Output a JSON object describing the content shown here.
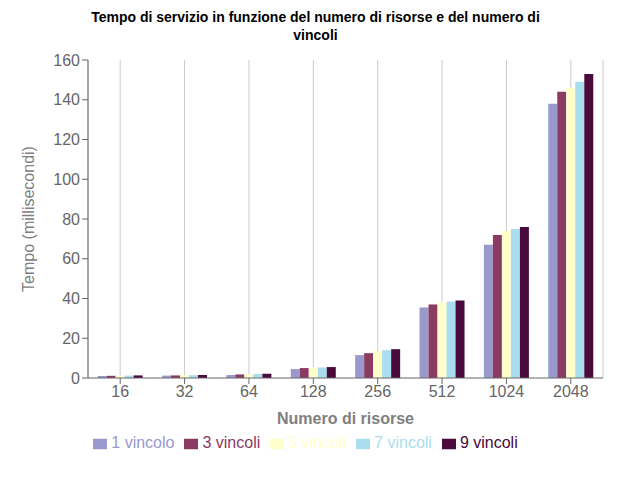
{
  "chart_data": {
    "type": "bar",
    "title": "Tempo di servizio in funzione del numero di risorse e del numero di\nvincoli",
    "xlabel": "Numero di risorse",
    "ylabel": "Tempo (millisecondi)",
    "categories": [
      "16",
      "32",
      "64",
      "128",
      "256",
      "512",
      "1024",
      "2048"
    ],
    "series": [
      {
        "name": "1 vincolo",
        "color": "#9999CC",
        "values": [
          1.0,
          1.2,
          1.5,
          4.5,
          11.5,
          35.5,
          67.0,
          138.0
        ]
      },
      {
        "name": "3 vincoli",
        "color": "#8B3A62",
        "values": [
          1.1,
          1.3,
          1.8,
          5.0,
          12.5,
          37.0,
          72.0,
          144.0
        ]
      },
      {
        "name": "5 vincoli",
        "color": "#FFFFCC",
        "values": [
          1.1,
          1.4,
          1.9,
          5.2,
          13.5,
          38.0,
          74.0,
          146.0
        ]
      },
      {
        "name": "7 vincoli",
        "color": "#AADDEE",
        "values": [
          1.2,
          1.4,
          2.0,
          5.3,
          14.0,
          38.5,
          75.0,
          149.0
        ]
      },
      {
        "name": "9 vincoli",
        "color": "#4B0A3C",
        "values": [
          1.3,
          1.5,
          2.1,
          5.5,
          14.5,
          39.0,
          76.0,
          153.0
        ]
      }
    ],
    "ylim": [
      0,
      160
    ],
    "yticks": [
      0,
      20,
      40,
      60,
      80,
      100,
      120,
      140,
      160
    ],
    "grid": true,
    "legend": "bottom"
  }
}
